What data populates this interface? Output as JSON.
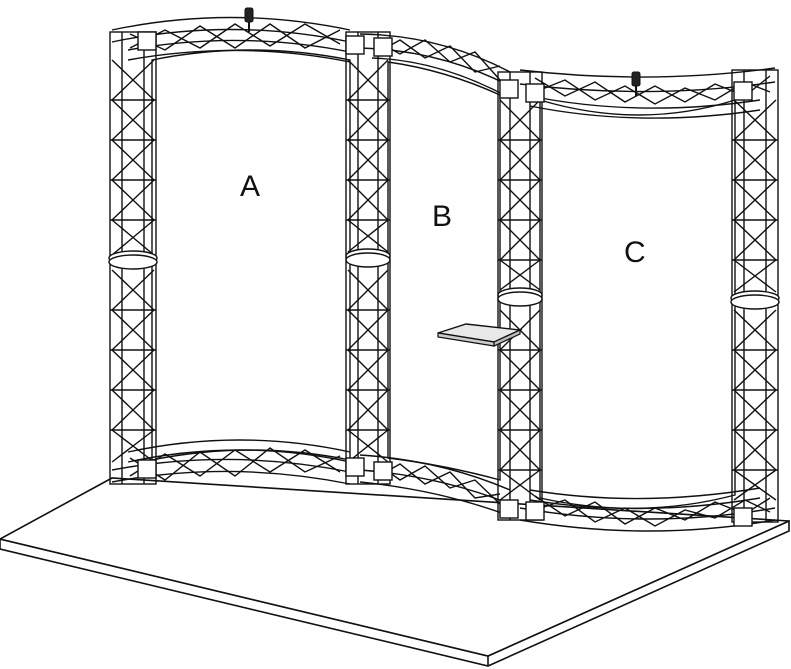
{
  "diagram": {
    "panels": [
      {
        "id": "A",
        "label": "A"
      },
      {
        "id": "B",
        "label": "B"
      },
      {
        "id": "C",
        "label": "C"
      }
    ],
    "colors": {
      "line": "#111111",
      "truss_fill": "#ffffff",
      "floor_fill": "#ffffff",
      "shelf_fill": "#e8e8e8"
    }
  }
}
